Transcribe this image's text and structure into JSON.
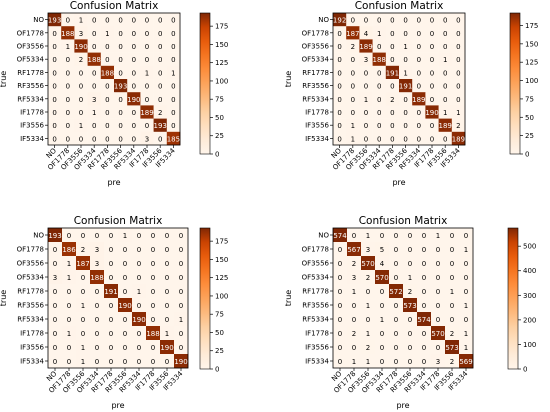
{
  "chart_data": [
    {
      "type": "heatmap",
      "title": "Confusion Matrix",
      "xlabel": "pre",
      "ylabel": "true",
      "labels": [
        "NO",
        "OF1778",
        "OF3556",
        "OF5334",
        "RF1778",
        "RF3556",
        "RF5334",
        "IF1778",
        "IF3556",
        "IF5334"
      ],
      "matrix": [
        [
          193,
          0,
          1,
          0,
          0,
          0,
          0,
          0,
          0,
          0
        ],
        [
          0,
          188,
          3,
          0,
          1,
          0,
          0,
          0,
          0,
          0
        ],
        [
          0,
          1,
          190,
          0,
          0,
          0,
          0,
          0,
          0,
          0
        ],
        [
          0,
          0,
          2,
          188,
          0,
          0,
          0,
          0,
          0,
          0
        ],
        [
          0,
          0,
          0,
          0,
          188,
          0,
          0,
          1,
          0,
          1
        ],
        [
          0,
          0,
          0,
          0,
          0,
          193,
          0,
          0,
          0,
          0
        ],
        [
          0,
          0,
          0,
          3,
          0,
          0,
          190,
          0,
          0,
          0
        ],
        [
          0,
          0,
          0,
          1,
          0,
          0,
          0,
          189,
          2,
          0
        ],
        [
          0,
          0,
          1,
          0,
          0,
          0,
          0,
          0,
          193,
          0
        ],
        [
          0,
          0,
          0,
          0,
          0,
          0,
          0,
          3,
          0,
          185
        ]
      ],
      "colorbar_ticks": [
        0,
        25,
        50,
        75,
        100,
        125,
        150,
        175
      ],
      "colorbar_max": 193
    },
    {
      "type": "heatmap",
      "title": "Confusion Matrix",
      "xlabel": "pre",
      "ylabel": "true",
      "labels": [
        "NO",
        "OF1778",
        "OF3556",
        "OF5334",
        "RF1778",
        "RF3556",
        "RF5334",
        "IF1778",
        "IF3556",
        "IF5334"
      ],
      "matrix": [
        [
          192,
          0,
          0,
          0,
          0,
          0,
          0,
          0,
          0,
          0
        ],
        [
          0,
          187,
          4,
          1,
          0,
          0,
          0,
          0,
          0,
          0
        ],
        [
          0,
          2,
          189,
          0,
          0,
          1,
          0,
          0,
          0,
          0
        ],
        [
          0,
          0,
          3,
          188,
          0,
          0,
          0,
          0,
          1,
          0
        ],
        [
          0,
          0,
          0,
          0,
          191,
          1,
          0,
          0,
          0,
          0
        ],
        [
          0,
          0,
          0,
          0,
          0,
          191,
          0,
          0,
          0,
          0
        ],
        [
          0,
          0,
          1,
          0,
          2,
          0,
          189,
          0,
          0,
          0
        ],
        [
          0,
          0,
          0,
          0,
          0,
          0,
          0,
          190,
          1,
          1
        ],
        [
          0,
          1,
          0,
          0,
          0,
          0,
          0,
          0,
          189,
          2
        ],
        [
          0,
          1,
          0,
          0,
          0,
          0,
          0,
          0,
          0,
          189
        ]
      ],
      "colorbar_ticks": [
        0,
        25,
        50,
        75,
        100,
        125,
        150,
        175
      ],
      "colorbar_max": 192
    },
    {
      "type": "heatmap",
      "title": "Confusion Matrix",
      "xlabel": "pre",
      "ylabel": "true",
      "labels": [
        "NO",
        "OF1778",
        "OF3556",
        "OF5334",
        "RF1778",
        "RF3556",
        "RF5334",
        "IF1778",
        "IF3556",
        "IF5334"
      ],
      "matrix": [
        [
          193,
          0,
          0,
          0,
          0,
          1,
          0,
          0,
          0,
          0
        ],
        [
          0,
          186,
          2,
          3,
          0,
          0,
          0,
          0,
          0,
          0
        ],
        [
          0,
          1,
          187,
          3,
          0,
          0,
          0,
          0,
          0,
          0
        ],
        [
          3,
          1,
          0,
          188,
          0,
          0,
          0,
          0,
          0,
          0
        ],
        [
          0,
          0,
          0,
          0,
          191,
          0,
          1,
          0,
          0,
          0
        ],
        [
          0,
          0,
          1,
          0,
          0,
          190,
          0,
          0,
          0,
          0
        ],
        [
          0,
          0,
          0,
          0,
          0,
          0,
          190,
          0,
          0,
          1
        ],
        [
          0,
          1,
          0,
          0,
          0,
          0,
          0,
          188,
          1,
          0
        ],
        [
          0,
          0,
          1,
          0,
          0,
          0,
          0,
          0,
          190,
          0
        ],
        [
          0,
          0,
          1,
          0,
          0,
          0,
          0,
          0,
          0,
          190
        ]
      ],
      "colorbar_ticks": [
        0,
        25,
        50,
        75,
        100,
        125,
        150,
        175
      ],
      "colorbar_max": 193
    },
    {
      "type": "heatmap",
      "title": "Confusion Matrix",
      "xlabel": "pre",
      "ylabel": "true",
      "labels": [
        "NO",
        "OF1778",
        "OF3556",
        "OF5334",
        "RF1778",
        "RF3556",
        "RF5334",
        "IF1778",
        "IF3556",
        "IF5334"
      ],
      "matrix": [
        [
          574,
          0,
          1,
          0,
          0,
          0,
          0,
          1,
          0,
          0
        ],
        [
          0,
          567,
          3,
          5,
          0,
          0,
          0,
          0,
          0,
          1
        ],
        [
          0,
          2,
          570,
          4,
          0,
          0,
          0,
          0,
          0,
          0
        ],
        [
          0,
          3,
          2,
          570,
          0,
          1,
          0,
          0,
          0,
          0
        ],
        [
          0,
          1,
          0,
          0,
          572,
          2,
          0,
          0,
          1,
          0
        ],
        [
          0,
          0,
          1,
          0,
          0,
          573,
          0,
          0,
          0,
          1
        ],
        [
          0,
          0,
          0,
          1,
          0,
          0,
          574,
          0,
          0,
          0
        ],
        [
          0,
          2,
          1,
          0,
          0,
          0,
          0,
          570,
          2,
          1
        ],
        [
          0,
          0,
          2,
          0,
          0,
          0,
          0,
          0,
          573,
          1
        ],
        [
          0,
          1,
          1,
          0,
          0,
          0,
          0,
          3,
          2,
          569
        ]
      ],
      "colorbar_ticks": [
        0,
        100,
        200,
        300,
        400,
        500
      ],
      "colorbar_max": 574
    }
  ]
}
